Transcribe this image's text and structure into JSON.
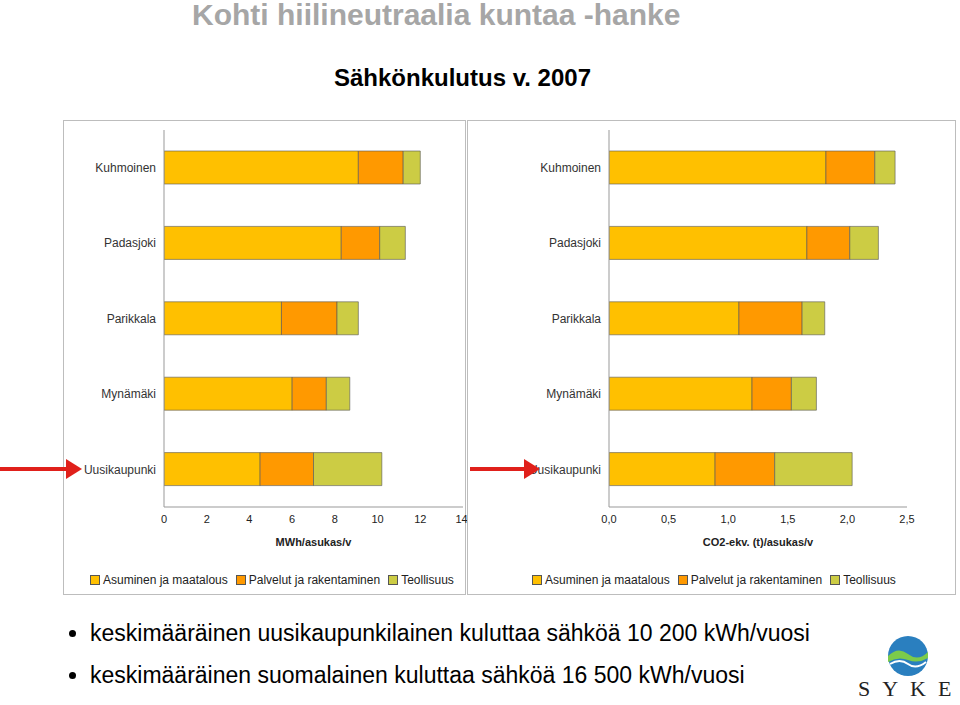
{
  "header": "Kohti hiilineutraalia kuntaa -hanke",
  "title": "Sähkönkulutus v. 2007",
  "bullets": [
    "keskimääräinen uusikaupunkilainen kuluttaa sähköä 10 200 kWh/vuosi",
    "keskimääräinen suomalainen kuluttaa sähköä 16 500 kWh/vuosi"
  ],
  "logo": "SYKE",
  "chart_data": [
    {
      "type": "bar",
      "orientation": "horizontal",
      "stacked": true,
      "legend": "bottom",
      "categories": [
        "Kuhmoinen",
        "Padasjoki",
        "Parikkala",
        "Mynämäki",
        "Uusikaupunki"
      ],
      "series": [
        {
          "name": "Asuminen ja maatalous",
          "color": "#ffc000",
          "values": [
            9.1,
            8.3,
            5.5,
            6.0,
            4.5
          ]
        },
        {
          "name": "Palvelut ja rakentaminen",
          "color": "#ff9900",
          "values": [
            2.1,
            1.8,
            2.6,
            1.6,
            2.5
          ]
        },
        {
          "name": "Teollisuus",
          "color": "#cccc44",
          "values": [
            0.8,
            1.2,
            1.0,
            1.1,
            3.2
          ]
        }
      ],
      "xlim": [
        0,
        14
      ],
      "xticks": [
        0,
        2,
        4,
        6,
        8,
        10,
        12,
        14
      ],
      "x_label": "MWh/asukas/v"
    },
    {
      "type": "bar",
      "orientation": "horizontal",
      "stacked": true,
      "legend": "bottom",
      "categories": [
        "Kuhmoinen",
        "Padasjoki",
        "Parikkala",
        "Mynämäki",
        "Uusikaupunki"
      ],
      "series": [
        {
          "name": "Asuminen ja maatalous",
          "color": "#ffc000",
          "values": [
            1.82,
            1.66,
            1.09,
            1.2,
            0.89
          ]
        },
        {
          "name": "Palvelut ja rakentaminen",
          "color": "#ff9900",
          "values": [
            0.41,
            0.36,
            0.53,
            0.33,
            0.5
          ]
        },
        {
          "name": "Teollisuus",
          "color": "#cccc44",
          "values": [
            0.17,
            0.24,
            0.19,
            0.21,
            0.65
          ]
        }
      ],
      "xlim": [
        0,
        2.5
      ],
      "xticks": [
        {
          "value": 0,
          "label": "0,0"
        },
        {
          "value": 0.5,
          "label": "0,5"
        },
        {
          "value": 1,
          "label": "1,0"
        },
        {
          "value": 1.5,
          "label": "1,5"
        },
        {
          "value": 2,
          "label": "2,0"
        },
        {
          "value": 2.5,
          "label": "2,5"
        }
      ],
      "x_label": "CO2-ekv. (t)/asukas/v"
    }
  ]
}
